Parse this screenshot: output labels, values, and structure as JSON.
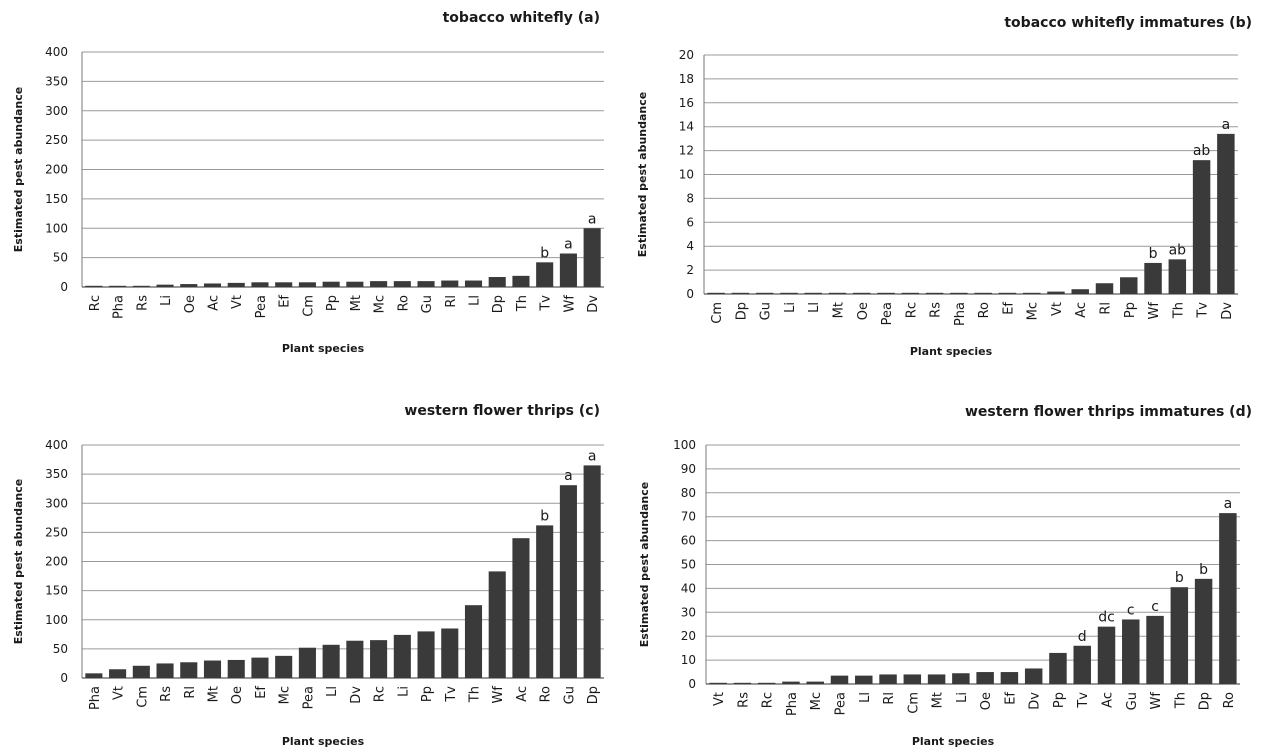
{
  "chart_data": [
    {
      "type": "bar",
      "title": "tobacco whitefly (a)",
      "xlabel": "Plant species",
      "ylabel": "Estimated pest abundance",
      "ylim": [
        0,
        400
      ],
      "yticks": [
        0,
        50,
        100,
        150,
        200,
        250,
        300,
        350,
        400
      ],
      "grid": true,
      "bar_color": "#3a3a3a",
      "categories": [
        "Rc",
        "Pha",
        "Rs",
        "Li",
        "Oe",
        "Ac",
        "Vt",
        "Pea",
        "Ef",
        "Cm",
        "Pp",
        "Mt",
        "Mc",
        "Ro",
        "Gu",
        "Rl",
        "Ll",
        "Dp",
        "Th",
        "Tv",
        "Wf",
        "Dv"
      ],
      "values": [
        1,
        1,
        2,
        4,
        5,
        6,
        7,
        8,
        8,
        8,
        9,
        9,
        10,
        10,
        10,
        11,
        11,
        17,
        19,
        42,
        57,
        100
      ],
      "annotations": [
        "",
        "",
        "",
        "",
        "",
        "",
        "",
        "",
        "",
        "",
        "",
        "",
        "",
        "",
        "",
        "",
        "",
        "",
        "",
        "b",
        "a",
        "a"
      ]
    },
    {
      "type": "bar",
      "title": "tobacco whitefly immatures (b)",
      "xlabel": "Plant species",
      "ylabel": "Estimated pest abundance",
      "ylim": [
        0,
        20
      ],
      "yticks": [
        0,
        2,
        4,
        6,
        8,
        10,
        12,
        14,
        16,
        18,
        20
      ],
      "grid": true,
      "bar_color": "#3a3a3a",
      "categories": [
        "Cm",
        "Dp",
        "Gu",
        "Li",
        "Ll",
        "Mt",
        "Oe",
        "Pea",
        "Rc",
        "Rs",
        "Pha",
        "Ro",
        "Ef",
        "Mc",
        "Vt",
        "Ac",
        "Rl",
        "Pp",
        "Wf",
        "Th",
        "Tv",
        "Dv"
      ],
      "values": [
        0.05,
        0.05,
        0.05,
        0.05,
        0.05,
        0.05,
        0.05,
        0.05,
        0.05,
        0.05,
        0.05,
        0.05,
        0.05,
        0.05,
        0.2,
        0.4,
        0.9,
        1.4,
        2.6,
        2.9,
        11.2,
        13.4
      ],
      "annotations": [
        "",
        "",
        "",
        "",
        "",
        "",
        "",
        "",
        "",
        "",
        "",
        "",
        "",
        "",
        "",
        "",
        "",
        "",
        "b",
        "ab",
        "ab",
        "a"
      ]
    },
    {
      "type": "bar",
      "title": "western flower thrips (c)",
      "xlabel": "Plant species",
      "ylabel": "Estimated pest abundance",
      "ylim": [
        0,
        400
      ],
      "yticks": [
        0,
        50,
        100,
        150,
        200,
        250,
        300,
        350,
        400
      ],
      "grid": true,
      "bar_color": "#3a3a3a",
      "categories": [
        "Pha",
        "Vt",
        "Cm",
        "Rs",
        "Rl",
        "Mt",
        "Oe",
        "Ef",
        "Mc",
        "Pea",
        "Ll",
        "Dv",
        "Rc",
        "Li",
        "Pp",
        "Tv",
        "Th",
        "Wf",
        "Ac",
        "Ro",
        "Gu",
        "Dp"
      ],
      "values": [
        8,
        15,
        21,
        25,
        27,
        30,
        31,
        35,
        38,
        52,
        57,
        64,
        65,
        74,
        80,
        85,
        125,
        183,
        240,
        262,
        331,
        365
      ],
      "annotations": [
        "",
        "",
        "",
        "",
        "",
        "",
        "",
        "",
        "",
        "",
        "",
        "",
        "",
        "",
        "",
        "",
        "",
        "",
        "",
        "b",
        "a",
        "a"
      ]
    },
    {
      "type": "bar",
      "title": "western flower thrips immatures (d)",
      "xlabel": "Plant species",
      "ylabel": "Estimated pest abundance",
      "ylim": [
        0,
        100
      ],
      "yticks": [
        0,
        10,
        20,
        30,
        40,
        50,
        60,
        70,
        80,
        90,
        100
      ],
      "grid": true,
      "bar_color": "#3a3a3a",
      "categories": [
        "Vt",
        "Rs",
        "Rc",
        "Pha",
        "Mc",
        "Pea",
        "Ll",
        "Rl",
        "Cm",
        "Mt",
        "Li",
        "Oe",
        "Ef",
        "Dv",
        "Pp",
        "Tv",
        "Ac",
        "Gu",
        "Wf",
        "Th",
        "Dp",
        "Ro"
      ],
      "values": [
        0.2,
        0.3,
        0.3,
        1,
        1,
        3.5,
        3.5,
        4,
        4,
        4,
        4.5,
        5,
        5,
        6.5,
        13,
        16,
        24,
        27,
        28.5,
        40.5,
        44,
        71.5
      ],
      "annotations": [
        "",
        "",
        "",
        "",
        "",
        "",
        "",
        "",
        "",
        "",
        "",
        "",
        "",
        "",
        "",
        "d",
        "dc",
        "c",
        "c",
        "b",
        "b",
        "a"
      ]
    }
  ]
}
